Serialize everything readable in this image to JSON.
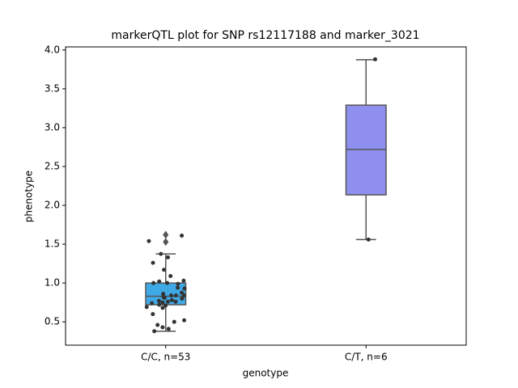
{
  "chart_data": {
    "type": "box",
    "title": "markerQTL plot for SNP rs12117188 and marker_3021",
    "x_label": "genotype",
    "y_label": "phenotype",
    "categories": [
      "C/C, n=53",
      "C/T, n=6"
    ],
    "boxes": [
      {
        "color": "#3fa9e6",
        "min": 0.38,
        "q1": 0.72,
        "median": 0.83,
        "q3": 1.0,
        "max": 1.375,
        "fliers": [
          1.62,
          1.53
        ],
        "points": [
          1.61,
          1.54,
          1.33,
          1.375,
          1.17,
          1.09,
          1.26,
          1.02,
          1.0,
          1.03,
          0.99,
          1.0,
          0.93,
          0.94,
          0.82,
          0.8,
          0.86,
          0.84,
          0.77,
          0.76,
          0.76,
          0.78,
          0.75,
          0.74,
          0.72,
          0.71,
          0.69,
          0.6,
          0.68,
          0.52,
          0.5,
          0.46,
          0.43,
          0.38,
          0.41,
          0.84,
          0.875,
          0.81,
          0.84
        ]
      },
      {
        "color": "#8f8ff0",
        "min": 1.56,
        "q1": 2.135,
        "median": 2.72,
        "q3": 3.29,
        "max": 3.875,
        "fliers": [],
        "points": [
          3.88,
          1.56
        ]
      }
    ],
    "ylim": [
      0.2,
      4.04
    ],
    "yticks": [
      0.5,
      {
        "value": 1.0,
        "label": "1.0"
      },
      1.5,
      {
        "value": 2.0,
        "label": "2.0"
      },
      2.5,
      {
        "value": 3.0,
        "label": "3.0"
      },
      3.5,
      {
        "value": 4.0,
        "label": "4.0"
      }
    ]
  }
}
